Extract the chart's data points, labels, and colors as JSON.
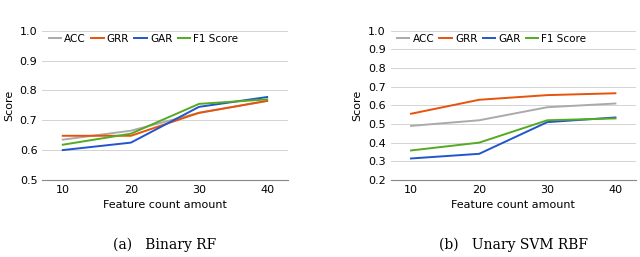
{
  "x": [
    10,
    20,
    30,
    40
  ],
  "chart_a": {
    "title_left": "(a)",
    "title_right": "Binary RF",
    "ACC": [
      0.635,
      0.665,
      0.725,
      0.765
    ],
    "GRR": [
      0.648,
      0.648,
      0.725,
      0.765
    ],
    "GAR": [
      0.6,
      0.625,
      0.745,
      0.778
    ],
    "F1Score": [
      0.618,
      0.655,
      0.755,
      0.77
    ],
    "ylim": [
      0.5,
      1.0
    ],
    "yticks": [
      0.5,
      0.6,
      0.7,
      0.8,
      0.9,
      1.0
    ]
  },
  "chart_b": {
    "title_left": "(b)",
    "title_right": "Unary SVM RBF",
    "ACC": [
      0.49,
      0.52,
      0.59,
      0.61
    ],
    "GRR": [
      0.555,
      0.63,
      0.655,
      0.665
    ],
    "GAR": [
      0.315,
      0.34,
      0.51,
      0.535
    ],
    "F1Score": [
      0.358,
      0.4,
      0.52,
      0.53
    ],
    "ylim": [
      0.2,
      1.0
    ],
    "yticks": [
      0.2,
      0.3,
      0.4,
      0.5,
      0.6,
      0.7,
      0.8,
      0.9,
      1.0
    ]
  },
  "colors": {
    "ACC": "#aaaaaa",
    "GRR": "#e8520a",
    "GAR": "#2255cc",
    "F1Score": "#55aa22"
  },
  "xlabel": "Feature count amount",
  "ylabel": "Score"
}
